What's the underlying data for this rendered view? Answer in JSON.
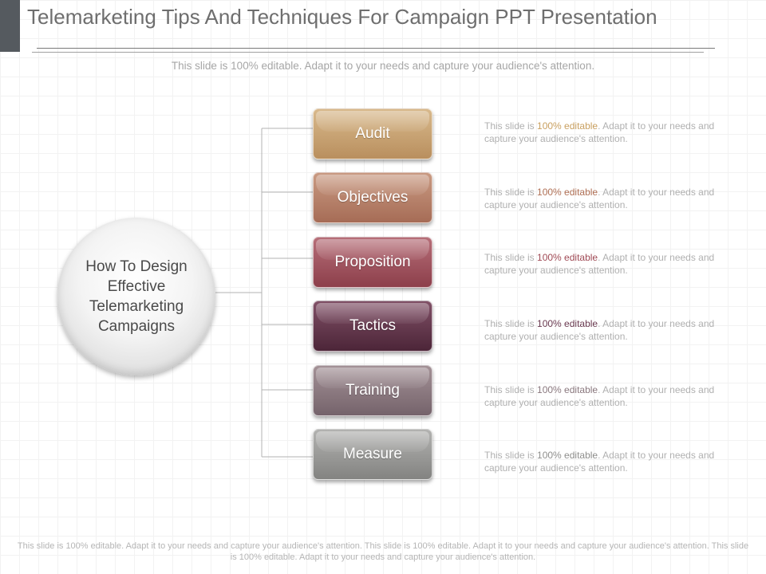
{
  "slide": {
    "title": "Telemarketing Tips And Techniques For Campaign PPT Presentation",
    "subtitle": "This slide is 100% editable. Adapt it to your needs and capture your audience's attention.",
    "footer": "This slide is 100% editable. Adapt it to your needs and capture your audience's attention. This slide is 100% editable. Adapt it to your needs and capture your audience's attention. This slide is 100% editable. Adapt it to your needs and capture your audience's attention."
  },
  "center": {
    "label": "How To Design Effective Telemarketing Campaigns"
  },
  "nodes": [
    {
      "label": "Audit",
      "color_top": "#d8b98c",
      "color_bottom": "#b98f5e",
      "accent": "#c9a060",
      "desc_pre": "This slide is ",
      "desc_hl": "100% editable",
      "desc_post": ". Adapt it to your needs and capture your audience's attention."
    },
    {
      "label": "Objectives",
      "color_top": "#c99a82",
      "color_bottom": "#a66c56",
      "accent": "#b07055",
      "desc_pre": "This slide is ",
      "desc_hl": "100% editable",
      "desc_post": ". Adapt it to your needs and capture your audience's attention."
    },
    {
      "label": "Proposition",
      "color_top": "#b66e78",
      "color_bottom": "#8d3f4b",
      "accent": "#a04a55",
      "desc_pre": "This slide is ",
      "desc_hl": "100% editable",
      "desc_post": ". Adapt it to your needs and capture your audience's attention."
    },
    {
      "label": "Tactics",
      "color_top": "#805066",
      "color_bottom": "#4c2538",
      "accent": "#6a3a50",
      "desc_pre": "This slide is ",
      "desc_hl": "100% editable",
      "desc_post": ". Adapt it to your needs and capture your audience's attention."
    },
    {
      "label": "Training",
      "color_top": "#a39196",
      "color_bottom": "#75636b",
      "accent": "#8a787e",
      "desc_pre": "This slide is ",
      "desc_hl": "100% editable",
      "desc_post": ". Adapt it to your needs and capture your audience's attention."
    },
    {
      "label": "Measure",
      "color_top": "#b2b2b0",
      "color_bottom": "#838381",
      "accent": "#8e8e8c",
      "desc_pre": "This slide is ",
      "desc_hl": "100% editable",
      "desc_post": ". Adapt it to your needs and capture your audience's attention."
    }
  ]
}
